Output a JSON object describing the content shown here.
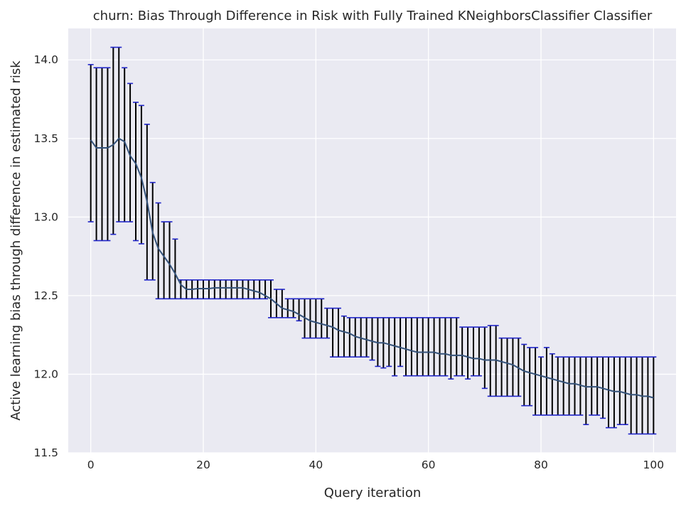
{
  "chart_data": {
    "type": "line",
    "title": "churn: Bias Through Difference in Risk with Fully Trained KNeighborsClassifier Classifier",
    "xlabel": "Query iteration",
    "ylabel": "Active learning bias through difference in estimated risk",
    "xlim": [
      -4,
      104
    ],
    "ylim": [
      11.5,
      14.2
    ],
    "xticks": [
      0,
      20,
      40,
      60,
      80,
      100
    ],
    "yticks": [
      11.5,
      12.0,
      12.5,
      13.0,
      13.5,
      14.0
    ],
    "xtick_labels": [
      "0",
      "20",
      "40",
      "60",
      "80",
      "100"
    ],
    "ytick_labels": [
      "11.5",
      "12.0",
      "12.5",
      "13.0",
      "13.5",
      "14.0"
    ],
    "grid": true,
    "legend": "none",
    "colors": {
      "background": "#eaeaf2",
      "grid": "#ffffff",
      "line": "#34527a",
      "errorbar": "#000000",
      "cap": "#1f24c8"
    },
    "series": [
      {
        "x": [
          0,
          1,
          2,
          3,
          4,
          5,
          6,
          7,
          8,
          9,
          10,
          11,
          12,
          13,
          14,
          15,
          16,
          17,
          18,
          19,
          20,
          21,
          22,
          23,
          24,
          25,
          26,
          27,
          28,
          29,
          30,
          31,
          32,
          33,
          34,
          35,
          36,
          37,
          38,
          39,
          40,
          41,
          42,
          43,
          44,
          45,
          46,
          47,
          48,
          49,
          50,
          51,
          52,
          53,
          54,
          55,
          56,
          57,
          58,
          59,
          60,
          61,
          62,
          63,
          64,
          65,
          66,
          67,
          68,
          69,
          70,
          71,
          72,
          73,
          74,
          75,
          76,
          77,
          78,
          79,
          80,
          81,
          82,
          83,
          84,
          85,
          86,
          87,
          88,
          89,
          90,
          91,
          92,
          93,
          94,
          95,
          96,
          97,
          98,
          99,
          100
        ],
        "y": [
          13.49,
          13.44,
          13.44,
          13.44,
          13.46,
          13.5,
          13.48,
          13.39,
          13.34,
          13.25,
          13.1,
          12.9,
          12.8,
          12.75,
          12.7,
          12.64,
          12.57,
          12.54,
          12.54,
          12.545,
          12.545,
          12.545,
          12.55,
          12.55,
          12.55,
          12.55,
          12.55,
          12.55,
          12.54,
          12.53,
          12.52,
          12.5,
          12.48,
          12.45,
          12.42,
          12.41,
          12.4,
          12.38,
          12.36,
          12.34,
          12.33,
          12.32,
          12.31,
          12.3,
          12.28,
          12.27,
          12.26,
          12.24,
          12.23,
          12.22,
          12.21,
          12.2,
          12.2,
          12.19,
          12.18,
          12.17,
          12.16,
          12.15,
          12.14,
          12.14,
          12.14,
          12.14,
          12.13,
          12.13,
          12.12,
          12.12,
          12.12,
          12.11,
          12.1,
          12.1,
          12.09,
          12.09,
          12.09,
          12.08,
          12.07,
          12.06,
          12.04,
          12.02,
          12.01,
          12.0,
          11.99,
          11.98,
          11.97,
          11.96,
          11.95,
          11.94,
          11.94,
          11.93,
          11.92,
          11.92,
          11.92,
          11.91,
          11.9,
          11.89,
          11.89,
          11.88,
          11.87,
          11.87,
          11.86,
          11.86,
          11.85
        ],
        "upper": [
          13.97,
          13.95,
          13.95,
          13.95,
          14.08,
          14.08,
          13.95,
          13.85,
          13.73,
          13.71,
          13.59,
          13.22,
          13.09,
          12.97,
          12.97,
          12.86,
          12.6,
          12.6,
          12.6,
          12.6,
          12.6,
          12.6,
          12.6,
          12.6,
          12.6,
          12.6,
          12.6,
          12.6,
          12.6,
          12.6,
          12.6,
          12.6,
          12.6,
          12.54,
          12.54,
          12.48,
          12.48,
          12.48,
          12.48,
          12.48,
          12.48,
          12.48,
          12.42,
          12.42,
          12.42,
          12.37,
          12.36,
          12.36,
          12.36,
          12.36,
          12.36,
          12.36,
          12.36,
          12.36,
          12.36,
          12.36,
          12.36,
          12.36,
          12.36,
          12.36,
          12.36,
          12.36,
          12.36,
          12.36,
          12.36,
          12.36,
          12.3,
          12.3,
          12.3,
          12.3,
          12.3,
          12.31,
          12.31,
          12.23,
          12.23,
          12.23,
          12.23,
          12.19,
          12.17,
          12.17,
          12.11,
          12.17,
          12.13,
          12.11,
          12.11,
          12.11,
          12.11,
          12.11,
          12.11,
          12.11,
          12.11,
          12.11,
          12.11,
          12.11,
          12.11,
          12.11,
          12.11,
          12.11,
          12.11,
          12.11,
          12.11
        ],
        "lower": [
          12.97,
          12.85,
          12.85,
          12.85,
          12.89,
          12.97,
          12.97,
          12.97,
          12.85,
          12.83,
          12.6,
          12.6,
          12.48,
          12.48,
          12.48,
          12.48,
          12.48,
          12.48,
          12.48,
          12.48,
          12.48,
          12.48,
          12.48,
          12.48,
          12.48,
          12.48,
          12.48,
          12.48,
          12.48,
          12.48,
          12.48,
          12.48,
          12.36,
          12.36,
          12.36,
          12.36,
          12.36,
          12.34,
          12.23,
          12.23,
          12.23,
          12.23,
          12.23,
          12.11,
          12.11,
          12.11,
          12.11,
          12.11,
          12.11,
          12.11,
          12.09,
          12.05,
          12.04,
          12.05,
          11.99,
          12.05,
          11.99,
          11.99,
          11.99,
          11.99,
          11.99,
          11.99,
          11.99,
          11.99,
          11.97,
          11.99,
          11.99,
          11.97,
          11.99,
          11.99,
          11.91,
          11.86,
          11.86,
          11.86,
          11.86,
          11.86,
          11.86,
          11.8,
          11.8,
          11.74,
          11.74,
          11.74,
          11.74,
          11.74,
          11.74,
          11.74,
          11.74,
          11.74,
          11.68,
          11.74,
          11.74,
          11.72,
          11.66,
          11.66,
          11.68,
          11.68,
          11.62,
          11.62,
          11.62,
          11.62,
          11.62
        ]
      }
    ]
  }
}
